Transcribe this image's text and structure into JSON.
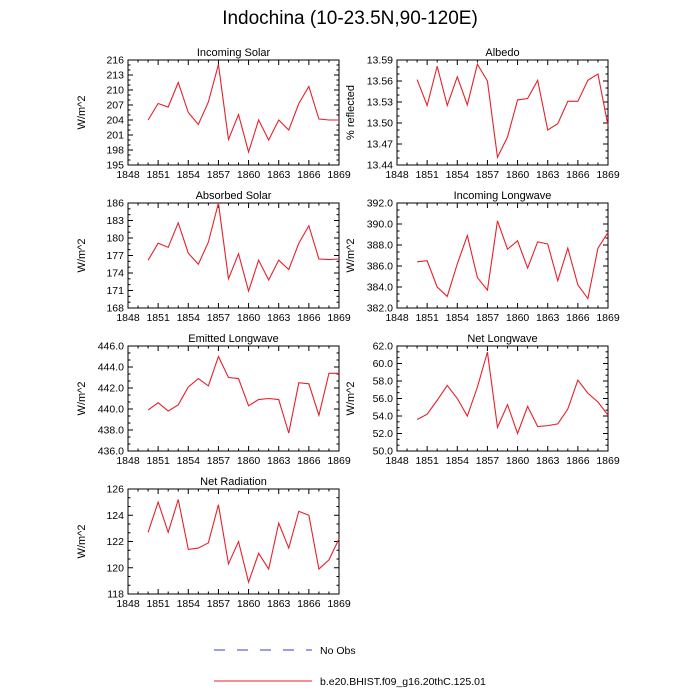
{
  "title": "Indochina (10-23.5N,90-120E)",
  "colors": {
    "model": "#e8202a",
    "obs": "#3b3bd1",
    "axis": "#000000"
  },
  "legend": [
    {
      "label": "No Obs",
      "style": "dashed",
      "color": "#3b3bd1"
    },
    {
      "label": "b.e20.BHIST.f09_g16.20thC.125.01",
      "style": "solid",
      "color": "#e8202a"
    }
  ],
  "chart_data": [
    {
      "type": "line",
      "title": "Incoming Solar",
      "ylabel": "W/m^2",
      "xlim": [
        1848,
        1869
      ],
      "ylim": [
        195,
        216
      ],
      "xticks": [
        1848,
        1851,
        1854,
        1857,
        1860,
        1863,
        1866,
        1869
      ],
      "yticks": [
        195,
        198,
        201,
        204,
        207,
        210,
        213,
        216
      ],
      "ytick_labels": [
        "195",
        "198",
        "201",
        "204",
        "207",
        "210",
        "213",
        "216"
      ],
      "series": [
        {
          "x": [
            1850,
            1851,
            1852,
            1853,
            1854,
            1855,
            1856,
            1857,
            1858,
            1859,
            1860,
            1861,
            1862,
            1863,
            1864,
            1865,
            1866,
            1867,
            1868,
            1869
          ],
          "y": [
            204.0,
            207.3,
            206.6,
            211.5,
            205.5,
            203.1,
            207.6,
            215.1,
            200.1,
            205.1,
            197.6,
            204.0,
            200.0,
            204.0,
            202.0,
            207.3,
            210.7,
            204.2,
            204.0,
            204.0
          ]
        }
      ]
    },
    {
      "type": "line",
      "title": "Albedo",
      "ylabel": "% reflected",
      "xlim": [
        1848,
        1869
      ],
      "ylim": [
        13.44,
        13.59
      ],
      "xticks": [
        1848,
        1851,
        1854,
        1857,
        1860,
        1863,
        1866,
        1869
      ],
      "yticks": [
        13.44,
        13.47,
        13.5,
        13.53,
        13.56,
        13.59
      ],
      "ytick_labels": [
        "13.44",
        "13.47",
        "13.50",
        "13.53",
        "13.56",
        "13.59"
      ],
      "series": [
        {
          "x": [
            1850,
            1851,
            1852,
            1853,
            1854,
            1855,
            1856,
            1857,
            1858,
            1859,
            1860,
            1861,
            1862,
            1863,
            1864,
            1865,
            1866,
            1867,
            1868,
            1869
          ],
          "y": [
            13.562,
            13.525,
            13.581,
            13.525,
            13.566,
            13.526,
            13.584,
            13.56,
            13.451,
            13.48,
            13.533,
            13.535,
            13.561,
            13.49,
            13.499,
            13.531,
            13.531,
            13.561,
            13.57,
            13.496
          ]
        }
      ]
    },
    {
      "type": "line",
      "title": "Absorbed Solar",
      "ylabel": "W/m^2",
      "xlim": [
        1848,
        1869
      ],
      "ylim": [
        168,
        186
      ],
      "xticks": [
        1848,
        1851,
        1854,
        1857,
        1860,
        1863,
        1866,
        1869
      ],
      "yticks": [
        168,
        171,
        174,
        177,
        180,
        183,
        186
      ],
      "ytick_labels": [
        "168",
        "171",
        "174",
        "177",
        "180",
        "183",
        "186"
      ],
      "series": [
        {
          "x": [
            1850,
            1851,
            1852,
            1853,
            1854,
            1855,
            1856,
            1857,
            1858,
            1859,
            1860,
            1861,
            1862,
            1863,
            1864,
            1865,
            1866,
            1867,
            1868,
            1869
          ],
          "y": [
            176.2,
            179.1,
            178.4,
            182.6,
            177.4,
            175.5,
            179.3,
            186.0,
            173.0,
            177.3,
            170.9,
            176.2,
            172.8,
            176.2,
            174.6,
            179.1,
            182.1,
            176.4,
            176.3,
            176.4
          ]
        }
      ]
    },
    {
      "type": "line",
      "title": "Incoming Longwave",
      "ylabel": "W/m^2",
      "xlim": [
        1848,
        1869
      ],
      "ylim": [
        382.0,
        392.0
      ],
      "xticks": [
        1848,
        1851,
        1854,
        1857,
        1860,
        1863,
        1866,
        1869
      ],
      "yticks": [
        382,
        384,
        386,
        388,
        390,
        392
      ],
      "ytick_labels": [
        "382.0",
        "384.0",
        "386.0",
        "388.0",
        "390.0",
        "392.0"
      ],
      "series": [
        {
          "x": [
            1850,
            1851,
            1852,
            1853,
            1854,
            1855,
            1856,
            1857,
            1858,
            1859,
            1860,
            1861,
            1862,
            1863,
            1864,
            1865,
            1866,
            1867,
            1868,
            1869
          ],
          "y": [
            386.4,
            386.5,
            384.0,
            383.1,
            386.2,
            388.9,
            384.9,
            383.7,
            390.3,
            387.6,
            388.4,
            385.8,
            388.3,
            388.1,
            384.6,
            387.7,
            384.2,
            382.9,
            387.7,
            389.2
          ]
        }
      ]
    },
    {
      "type": "line",
      "title": "Emitted Longwave",
      "ylabel": "W/m^2",
      "xlim": [
        1848,
        1869
      ],
      "ylim": [
        436.0,
        446.0
      ],
      "xticks": [
        1848,
        1851,
        1854,
        1857,
        1860,
        1863,
        1866,
        1869
      ],
      "yticks": [
        436,
        438,
        440,
        442,
        444,
        446
      ],
      "ytick_labels": [
        "436.0",
        "438.0",
        "440.0",
        "442.0",
        "444.0",
        "446.0"
      ],
      "series": [
        {
          "x": [
            1850,
            1851,
            1852,
            1853,
            1854,
            1855,
            1856,
            1857,
            1858,
            1859,
            1860,
            1861,
            1862,
            1863,
            1864,
            1865,
            1866,
            1867,
            1868,
            1869
          ],
          "y": [
            439.9,
            440.6,
            439.8,
            440.4,
            442.1,
            442.9,
            442.2,
            445.0,
            443.0,
            442.9,
            440.3,
            440.9,
            441.0,
            440.9,
            437.7,
            442.5,
            442.4,
            439.4,
            443.4,
            443.4
          ]
        }
      ]
    },
    {
      "type": "line",
      "title": "Net Longwave",
      "ylabel": "W/m^2",
      "xlim": [
        1848,
        1869
      ],
      "ylim": [
        50.0,
        62.0
      ],
      "xticks": [
        1848,
        1851,
        1854,
        1857,
        1860,
        1863,
        1866,
        1869
      ],
      "yticks": [
        50,
        52,
        54,
        56,
        58,
        60,
        62
      ],
      "ytick_labels": [
        "50.0",
        "52.0",
        "54.0",
        "56.0",
        "58.0",
        "60.0",
        "62.0"
      ],
      "series": [
        {
          "x": [
            1850,
            1851,
            1852,
            1853,
            1854,
            1855,
            1856,
            1857,
            1858,
            1859,
            1860,
            1861,
            1862,
            1863,
            1864,
            1865,
            1866,
            1867,
            1868,
            1869
          ],
          "y": [
            53.6,
            54.2,
            55.8,
            57.5,
            56.0,
            54.0,
            57.3,
            61.3,
            52.7,
            55.3,
            52.0,
            55.1,
            52.8,
            52.9,
            53.1,
            54.8,
            58.1,
            56.6,
            55.6,
            54.1
          ]
        }
      ]
    },
    {
      "type": "line",
      "title": "Net Radiation",
      "ylabel": "W/m^2",
      "xlim": [
        1848,
        1869
      ],
      "ylim": [
        118,
        126
      ],
      "xticks": [
        1848,
        1851,
        1854,
        1857,
        1860,
        1863,
        1866,
        1869
      ],
      "yticks": [
        118,
        120,
        122,
        124,
        126
      ],
      "ytick_labels": [
        "118",
        "120",
        "122",
        "124",
        "126"
      ],
      "series": [
        {
          "x": [
            1850,
            1851,
            1852,
            1853,
            1854,
            1855,
            1856,
            1857,
            1858,
            1859,
            1860,
            1861,
            1862,
            1863,
            1864,
            1865,
            1866,
            1867,
            1868,
            1869
          ],
          "y": [
            122.7,
            125.0,
            122.7,
            125.2,
            121.4,
            121.5,
            121.9,
            124.8,
            120.3,
            122.0,
            118.9,
            121.1,
            119.9,
            123.4,
            121.5,
            124.3,
            124.0,
            119.9,
            120.6,
            122.2
          ]
        }
      ]
    }
  ]
}
